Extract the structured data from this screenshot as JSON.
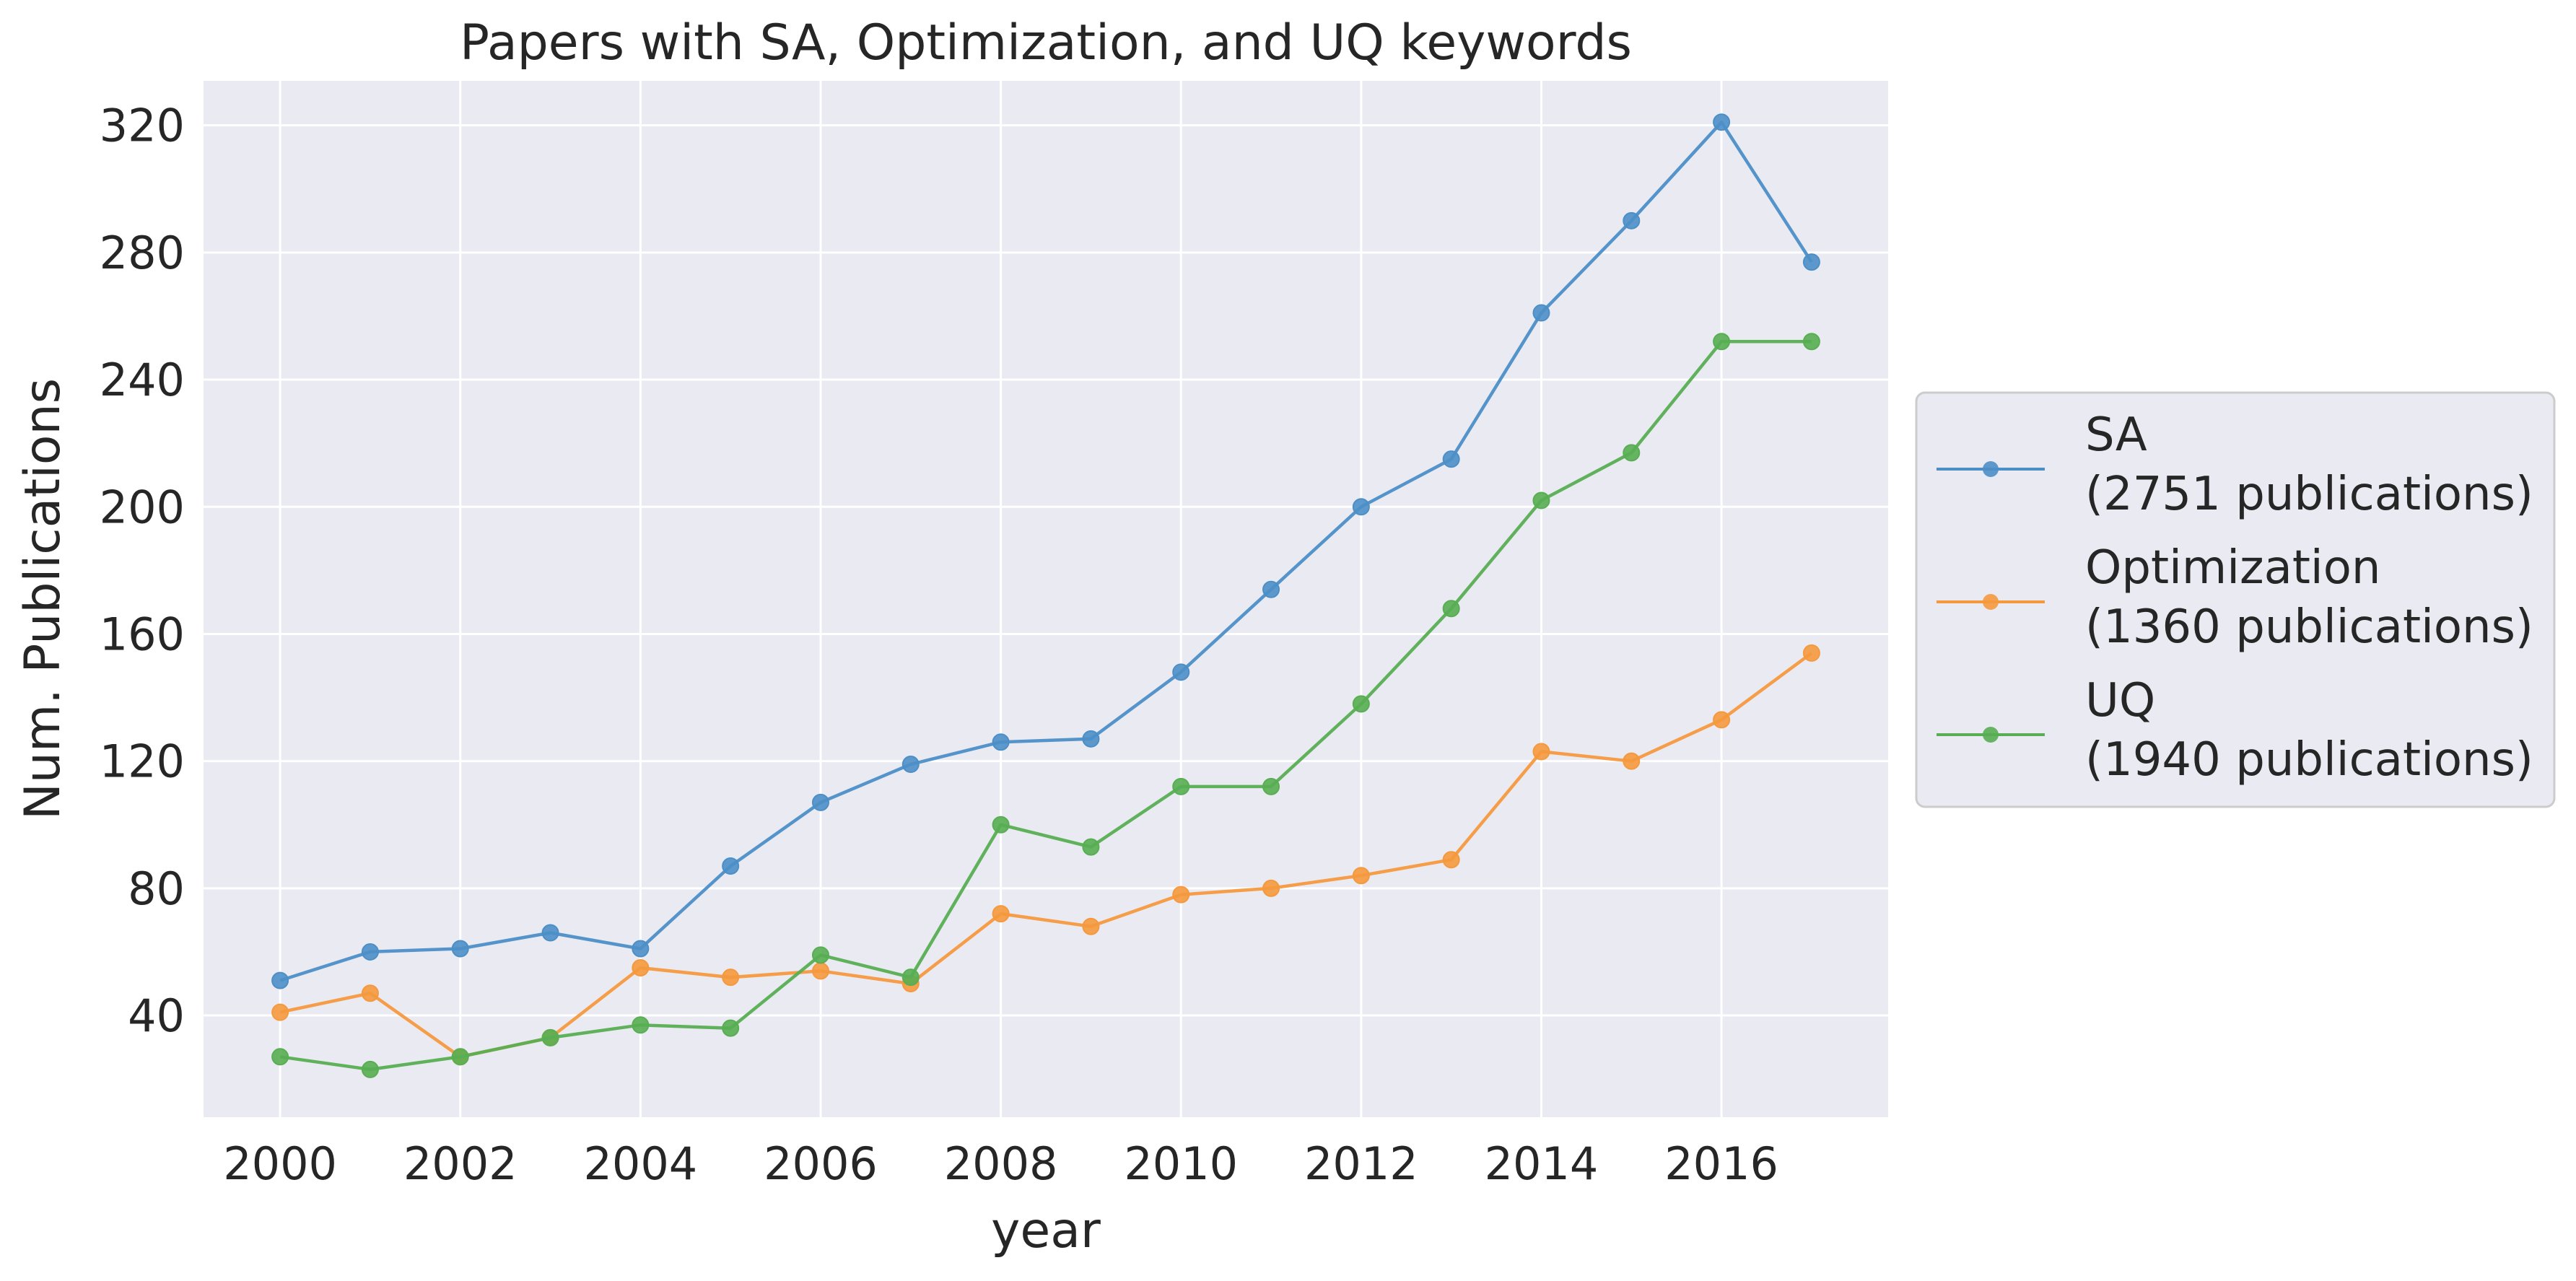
{
  "chart_data": {
    "type": "line",
    "title": "Papers with SA, Optimization, and UQ keywords",
    "xlabel": "year",
    "ylabel": "Num. Publications",
    "x": [
      2000,
      2001,
      2002,
      2003,
      2004,
      2005,
      2006,
      2007,
      2008,
      2009,
      2010,
      2011,
      2012,
      2013,
      2014,
      2015,
      2016,
      2017
    ],
    "xticks": [
      "2000",
      "2002",
      "2004",
      "2006",
      "2008",
      "2010",
      "2012",
      "2014",
      "2016"
    ],
    "yticks": [
      "40",
      "80",
      "120",
      "160",
      "200",
      "240",
      "280",
      "320"
    ],
    "xlim": [
      1999.15,
      2017.85
    ],
    "ylim": [
      8,
      334
    ],
    "grid": true,
    "legend_position": "center-right outside",
    "series": [
      {
        "name": "SA",
        "legend_line1": "SA",
        "legend_line2": "(2751 publications)",
        "color": "#4c8fc7",
        "values": [
          51,
          60,
          61,
          66,
          61,
          87,
          107,
          119,
          126,
          127,
          148,
          174,
          200,
          215,
          261,
          290,
          321,
          277
        ]
      },
      {
        "name": "Optimization",
        "legend_line1": "Optimization",
        "legend_line2": "(1360 publications)",
        "color": "#f5993e",
        "values": [
          41,
          47,
          27,
          33,
          55,
          52,
          54,
          50,
          72,
          68,
          78,
          80,
          84,
          89,
          123,
          120,
          133,
          154
        ]
      },
      {
        "name": "UQ",
        "legend_line1": "UQ",
        "legend_line2": "(1940 publications)",
        "color": "#58ae52",
        "values": [
          27,
          23,
          27,
          33,
          37,
          36,
          59,
          52,
          100,
          93,
          112,
          112,
          138,
          168,
          202,
          217,
          252,
          252
        ]
      }
    ],
    "colors": {
      "plot_background": "#eaeaf2",
      "grid": "#ffffff",
      "text": "#262626",
      "legend_background": "#eaeaf2",
      "legend_border": "#cccccc"
    }
  }
}
